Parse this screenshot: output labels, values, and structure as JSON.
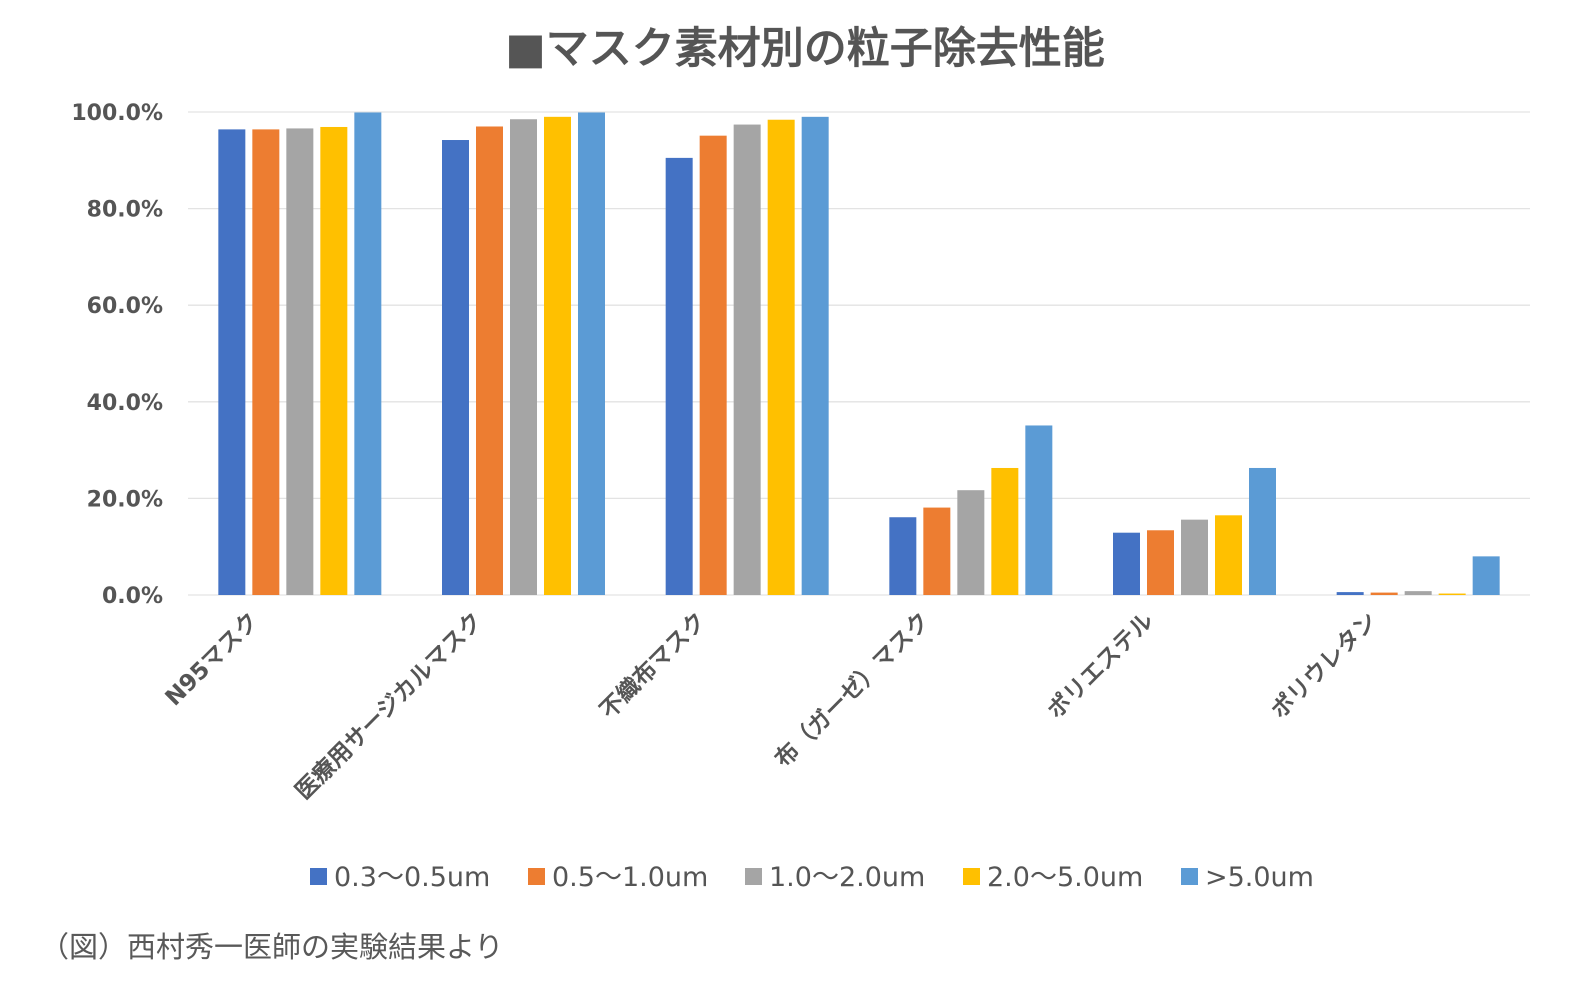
{
  "caption": "（図）西村秀一医師の実験結果より",
  "chart_data": {
    "type": "bar",
    "title": "■マスク素材別の粒子除去性能",
    "xlabel": "",
    "ylabel": "",
    "ylim": [
      0,
      100
    ],
    "ytick_values": [
      0,
      20,
      40,
      60,
      80,
      100
    ],
    "ytick_labels": [
      "0.0%",
      "20.0%",
      "40.0%",
      "60.0%",
      "80.0%",
      "100.0%"
    ],
    "grid": true,
    "legend_position": "bottom",
    "categories": [
      "N95マスク",
      "医療用サージカルマスク",
      "不織布マスク",
      "布（ガーゼ）マスク",
      "ポリエステル",
      "ポリウレタン"
    ],
    "series": [
      {
        "name": "0.3〜0.5um",
        "color": "#4472c4",
        "values": [
          96.4,
          94.2,
          90.5,
          16.1,
          12.9,
          0.6
        ]
      },
      {
        "name": "0.5〜1.0um",
        "color": "#ed7d31",
        "values": [
          96.4,
          97.0,
          95.1,
          18.1,
          13.4,
          0.5
        ]
      },
      {
        "name": "1.0〜2.0um",
        "color": "#a5a5a5",
        "values": [
          96.6,
          98.5,
          97.4,
          21.7,
          15.6,
          0.8
        ]
      },
      {
        "name": "2.0〜5.0um",
        "color": "#ffc000",
        "values": [
          96.9,
          99.0,
          98.4,
          26.3,
          16.5,
          0.3
        ]
      },
      {
        "name": ">5.0um",
        "color": "#5b9bd5",
        "values": [
          99.9,
          99.9,
          99.0,
          35.1,
          26.3,
          8.0
        ]
      }
    ]
  }
}
